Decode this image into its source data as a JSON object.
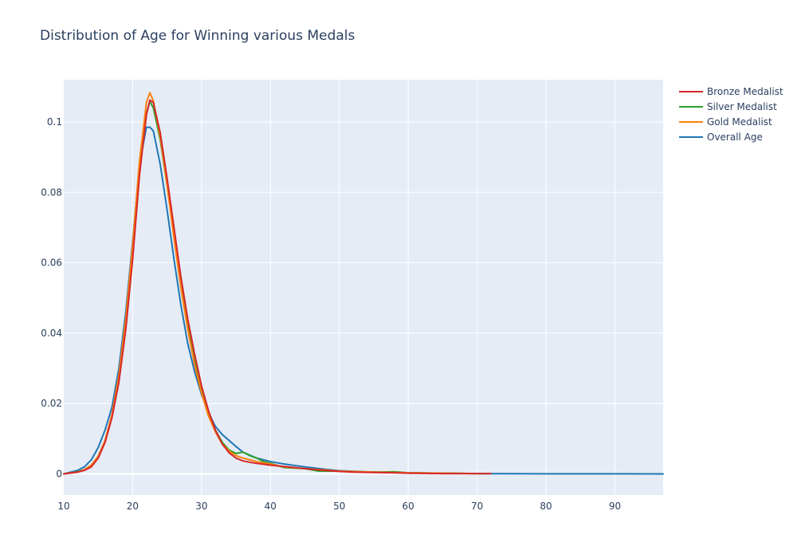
{
  "chart_data": {
    "type": "line",
    "title": "Distribution of Age for Winning various Medals",
    "xlabel": "",
    "ylabel": "",
    "xlim": [
      10,
      97
    ],
    "ylim": [
      -0.006,
      0.112
    ],
    "x_ticks": [
      10,
      20,
      30,
      40,
      50,
      60,
      70,
      80,
      90
    ],
    "y_ticks": [
      0,
      0.02,
      0.04,
      0.06,
      0.08,
      0.1
    ],
    "y_tick_labels": [
      "0",
      "0.02",
      "0.04",
      "0.06",
      "0.08",
      "0.1"
    ],
    "grid": true,
    "legend_position": "top-right",
    "plot_background": "#e5ecf6",
    "series": [
      {
        "name": "Bronze Medalist",
        "color": "#d62728",
        "x": [
          10,
          12,
          13,
          14,
          15,
          16,
          17,
          18,
          19,
          20,
          21,
          22,
          22.5,
          23,
          24,
          25,
          26,
          27,
          28,
          29,
          30,
          31,
          32,
          33,
          34,
          35,
          36,
          37,
          38,
          40,
          42,
          45,
          48,
          50,
          52,
          55,
          58,
          60,
          65,
          70,
          72
        ],
        "y": [
          0,
          0.0005,
          0.001,
          0.002,
          0.0045,
          0.009,
          0.016,
          0.026,
          0.041,
          0.061,
          0.085,
          0.102,
          0.1062,
          0.1055,
          0.097,
          0.084,
          0.07,
          0.056,
          0.044,
          0.034,
          0.025,
          0.018,
          0.0125,
          0.0085,
          0.006,
          0.0045,
          0.0037,
          0.0033,
          0.003,
          0.0025,
          0.0021,
          0.0015,
          0.001,
          0.0007,
          0.0005,
          0.0004,
          0.0003,
          0.0002,
          0.0001,
          0.0001,
          0.0001
        ]
      },
      {
        "name": "Silver Medalist",
        "color": "#2ca02c",
        "x": [
          10,
          12,
          13,
          14,
          15,
          16,
          17,
          18,
          19,
          20,
          21,
          22,
          22.5,
          23,
          24,
          25,
          26,
          27,
          28,
          29,
          30,
          31,
          32,
          33,
          34,
          35,
          36,
          37,
          38,
          39,
          40,
          42,
          45,
          47,
          50,
          55,
          58,
          60,
          65,
          70,
          72
        ],
        "y": [
          0,
          0.0006,
          0.0012,
          0.0025,
          0.005,
          0.0095,
          0.0165,
          0.027,
          0.042,
          0.062,
          0.086,
          0.1025,
          0.1058,
          0.104,
          0.095,
          0.082,
          0.068,
          0.054,
          0.042,
          0.032,
          0.024,
          0.017,
          0.0125,
          0.009,
          0.0068,
          0.0058,
          0.0062,
          0.0052,
          0.0045,
          0.0035,
          0.003,
          0.0018,
          0.0015,
          0.0008,
          0.0008,
          0.0005,
          0.0006,
          0.0003,
          0.0002,
          0.0001,
          0.0001
        ]
      },
      {
        "name": "Gold Medalist",
        "color": "#ff7f0e",
        "x": [
          10,
          12,
          13,
          14,
          15,
          16,
          17,
          18,
          19,
          20,
          21,
          22,
          22.5,
          23,
          24,
          25,
          26,
          27,
          28,
          29,
          30,
          31,
          32,
          33,
          34,
          35,
          36,
          38,
          40,
          42,
          45,
          48,
          50,
          55,
          60,
          65,
          70
        ],
        "y": [
          0,
          0.0005,
          0.0012,
          0.0025,
          0.005,
          0.0095,
          0.017,
          0.028,
          0.044,
          0.065,
          0.089,
          0.1055,
          0.1083,
          0.106,
          0.096,
          0.082,
          0.067,
          0.053,
          0.041,
          0.031,
          0.023,
          0.0165,
          0.012,
          0.0085,
          0.0065,
          0.0052,
          0.0045,
          0.0035,
          0.0028,
          0.002,
          0.0015,
          0.0011,
          0.0008,
          0.0005,
          0.0003,
          0.0002,
          0.0001
        ]
      },
      {
        "name": "Overall Age",
        "color": "#1f77b4",
        "x": [
          10,
          12,
          13,
          14,
          15,
          16,
          17,
          18,
          19,
          20,
          21,
          22,
          22.5,
          23,
          24,
          25,
          26,
          27,
          28,
          29,
          30,
          31,
          32,
          33,
          34,
          35,
          36,
          38,
          40,
          42,
          45,
          48,
          50,
          55,
          60,
          65,
          70,
          75,
          80,
          90,
          97
        ],
        "y": [
          0,
          0.001,
          0.002,
          0.004,
          0.0075,
          0.0125,
          0.019,
          0.03,
          0.046,
          0.066,
          0.088,
          0.0985,
          0.0985,
          0.0975,
          0.088,
          0.075,
          0.061,
          0.048,
          0.037,
          0.029,
          0.0225,
          0.0175,
          0.0135,
          0.0112,
          0.0095,
          0.0078,
          0.0062,
          0.0045,
          0.0035,
          0.0028,
          0.002,
          0.0013,
          0.0009,
          0.0005,
          0.0003,
          0.0002,
          0.0001,
          5e-05,
          3e-05,
          2e-05,
          1e-05
        ]
      }
    ]
  }
}
